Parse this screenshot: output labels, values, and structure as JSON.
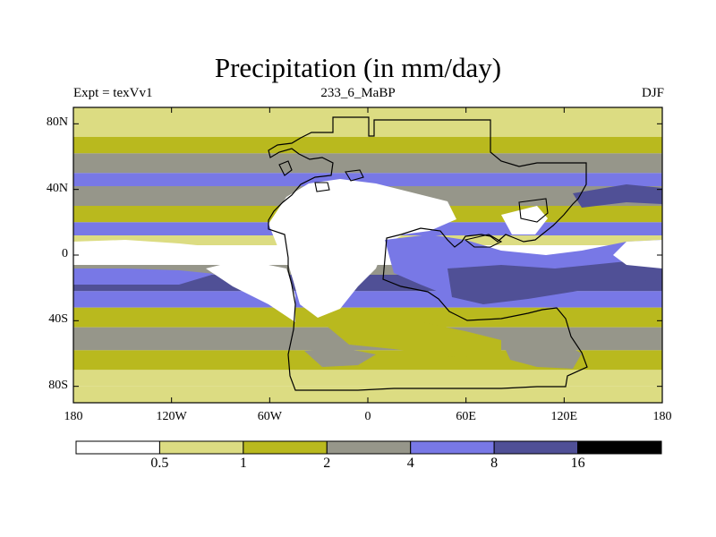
{
  "chart_data": {
    "type": "heatmap",
    "title": "Precipitation (in mm/day)",
    "subtitle_left": "Expt = texVv1",
    "subtitle_center": "233_6_MaBP",
    "subtitle_right": "DJF",
    "x_ticks": [
      "180",
      "120W",
      "60W",
      "0",
      "60E",
      "120E",
      "180"
    ],
    "x_tick_values": [
      -180,
      -120,
      -60,
      0,
      60,
      120,
      180
    ],
    "y_ticks": [
      "80N",
      "40N",
      "0",
      "40S",
      "80S"
    ],
    "y_tick_values": [
      80,
      40,
      0,
      -40,
      -80
    ],
    "xlim": [
      -180,
      180
    ],
    "ylim": [
      -90,
      90
    ],
    "colorbar": {
      "levels": [
        "0.5",
        "1",
        "2",
        "4",
        "8",
        "16"
      ],
      "colors": [
        "#ffffff",
        "#dcdc82",
        "#b9b91e",
        "#96968a",
        "#7878e6",
        "#505096",
        "#000000"
      ]
    },
    "zonal_bands": [
      {
        "lat_min": 72,
        "lat_max": 90,
        "class": 1
      },
      {
        "lat_min": 62,
        "lat_max": 72,
        "class": 2
      },
      {
        "lat_min": 50,
        "lat_max": 62,
        "class": 3
      },
      {
        "lat_min": 42,
        "lat_max": 50,
        "class": 4
      },
      {
        "lat_min": 30,
        "lat_max": 42,
        "class": 3
      },
      {
        "lat_min": 20,
        "lat_max": 30,
        "class": 2
      },
      {
        "lat_min": 12,
        "lat_max": 20,
        "class": 4
      },
      {
        "lat_min": 6,
        "lat_max": 12,
        "class": 1
      },
      {
        "lat_min": -6,
        "lat_max": 6,
        "class": 0
      },
      {
        "lat_min": -12,
        "lat_max": -6,
        "class": 3
      },
      {
        "lat_min": -22,
        "lat_max": -12,
        "class": 5
      },
      {
        "lat_min": -32,
        "lat_max": -22,
        "class": 4
      },
      {
        "lat_min": -44,
        "lat_max": -32,
        "class": 2
      },
      {
        "lat_min": -58,
        "lat_max": -44,
        "class": 3
      },
      {
        "lat_min": -70,
        "lat_max": -58,
        "class": 2
      },
      {
        "lat_min": -80,
        "lat_max": -70,
        "class": 1
      },
      {
        "lat_min": -90,
        "lat_max": -80,
        "class": 1
      }
    ]
  }
}
